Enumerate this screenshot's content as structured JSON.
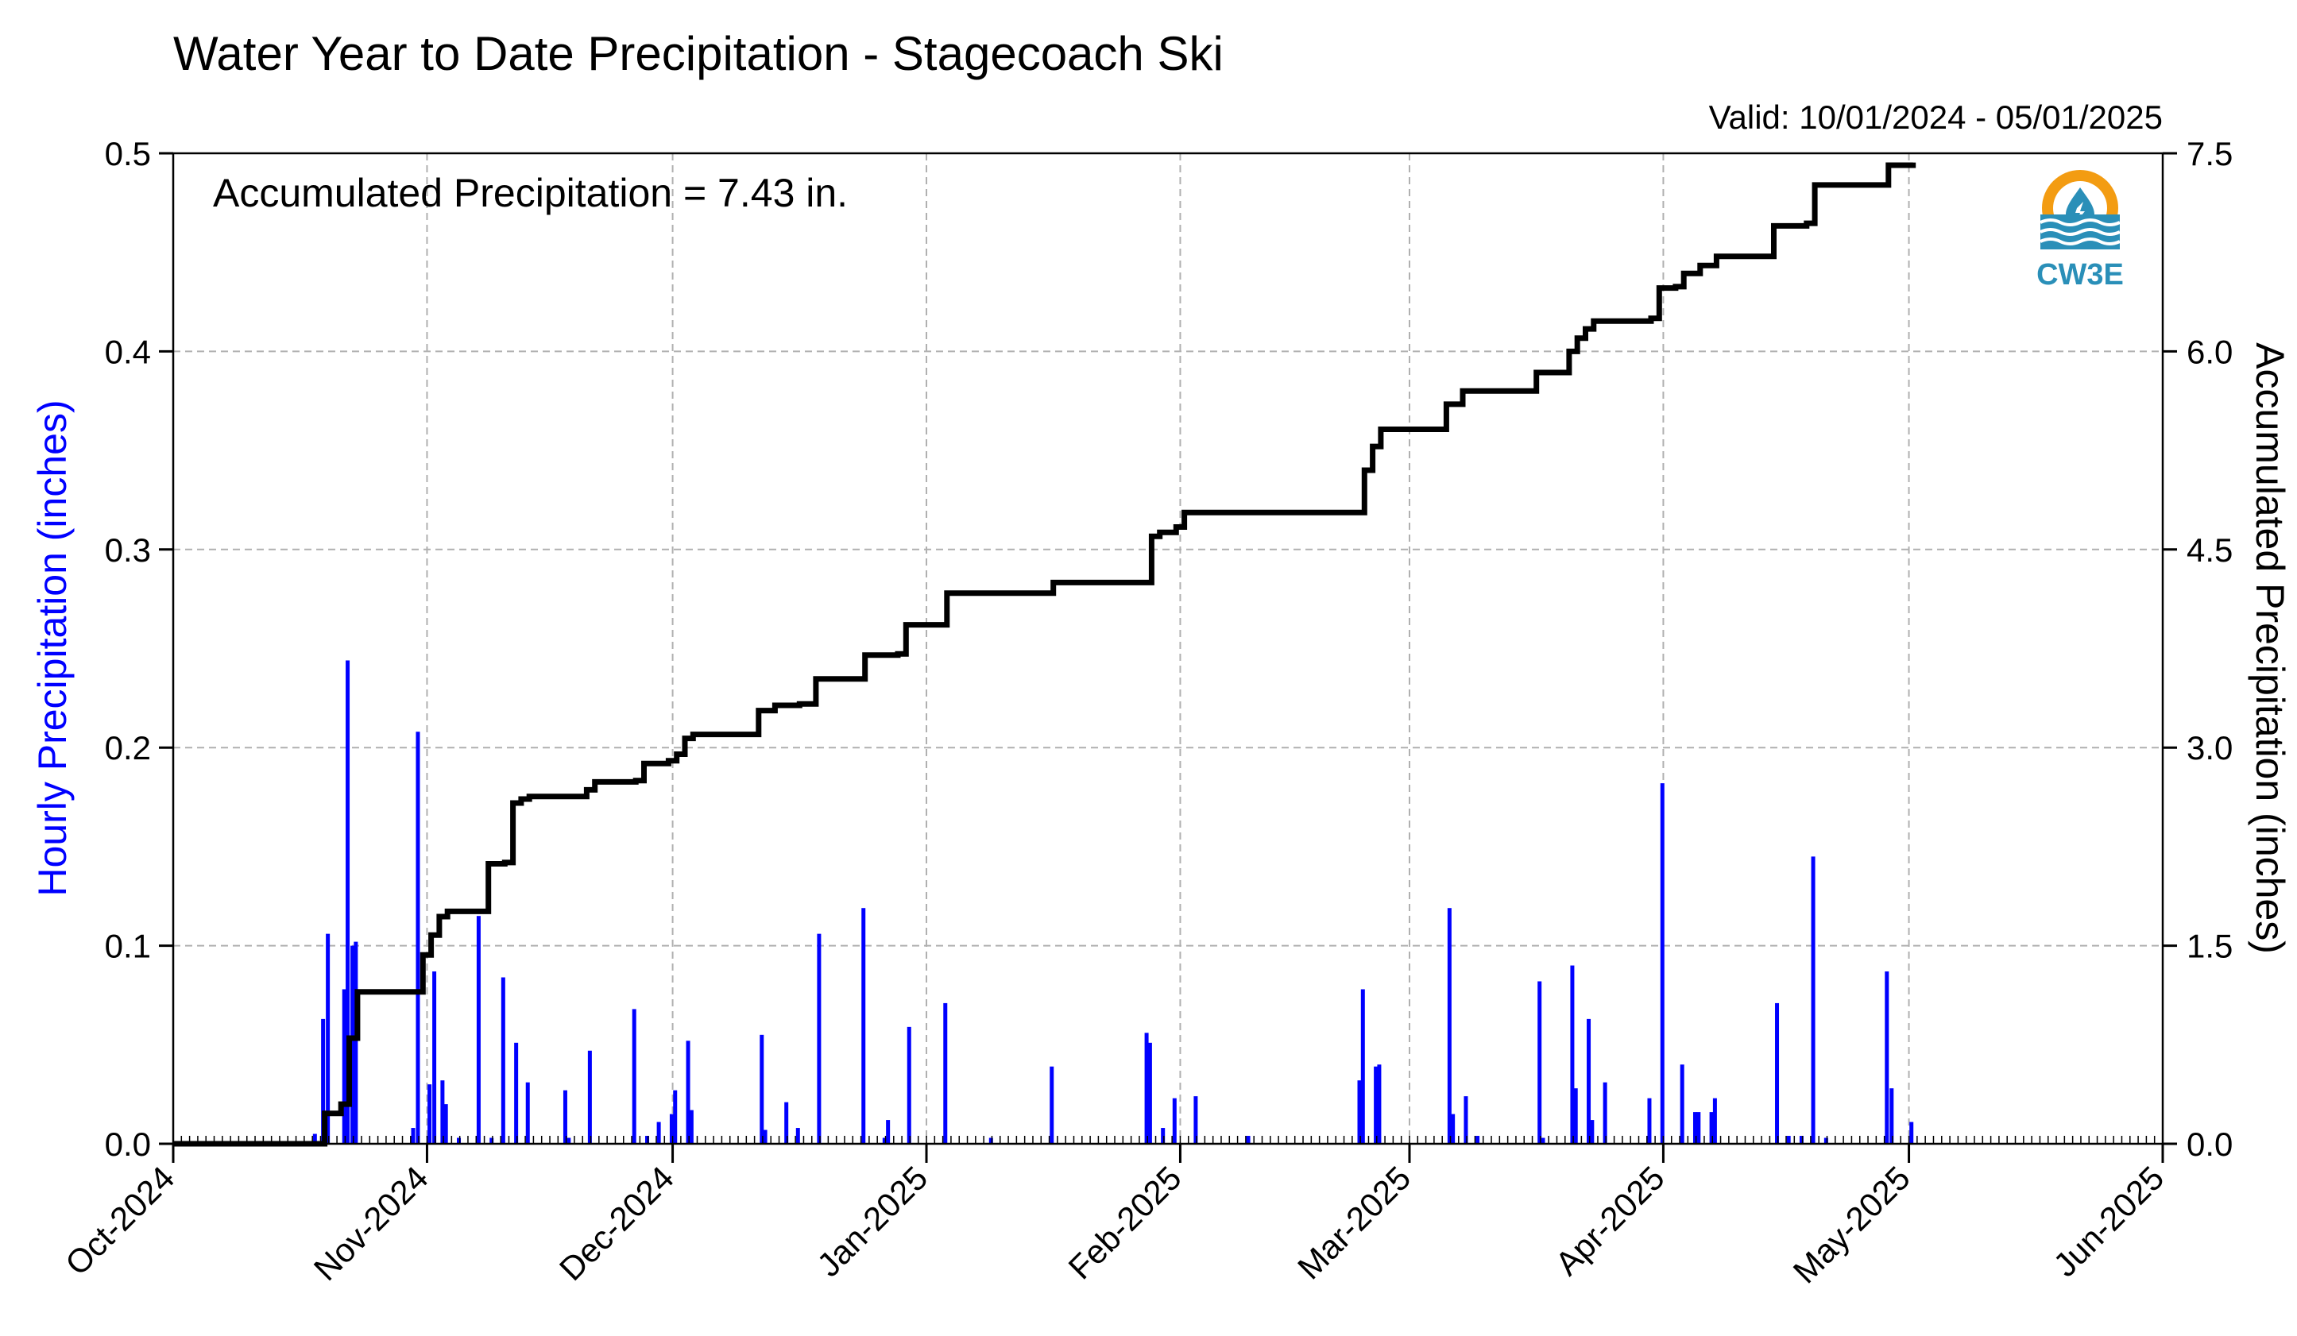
{
  "chart_data": {
    "type": "bar",
    "title": "Water Year to Date Precipitation - Stagecoach Ski",
    "valid_text": "Valid: 10/01/2024 - 05/01/2025",
    "annotation": "Accumulated Precipitation = 7.43 in.",
    "ylabel_left": "Hourly Precipitation (inches)",
    "ylabel_right": "Accumulated Precipitation (inches)",
    "xlim": [
      "2024-10-01",
      "2025-06-01"
    ],
    "ylim_left": [
      0,
      0.5
    ],
    "ylim_right": [
      0,
      7.5
    ],
    "x_ticks": [
      {
        "date": "2024-10-01",
        "label": "Oct-2024"
      },
      {
        "date": "2024-11-01",
        "label": "Nov-2024"
      },
      {
        "date": "2024-12-01",
        "label": "Dec-2024"
      },
      {
        "date": "2025-01-01",
        "label": "Jan-2025"
      },
      {
        "date": "2025-02-01",
        "label": "Feb-2025"
      },
      {
        "date": "2025-03-01",
        "label": "Mar-2025"
      },
      {
        "date": "2025-04-01",
        "label": "Apr-2025"
      },
      {
        "date": "2025-05-01",
        "label": "May-2025"
      },
      {
        "date": "2025-06-01",
        "label": "Jun-2025"
      }
    ],
    "y_ticks_left": [
      {
        "value": 0.0,
        "label": "0.0"
      },
      {
        "value": 0.1,
        "label": "0.1"
      },
      {
        "value": 0.2,
        "label": "0.2"
      },
      {
        "value": 0.3,
        "label": "0.3"
      },
      {
        "value": 0.4,
        "label": "0.4"
      },
      {
        "value": 0.5,
        "label": "0.5"
      }
    ],
    "y_ticks_right": [
      {
        "value": 0.0,
        "label": "0.0"
      },
      {
        "value": 1.5,
        "label": "1.5"
      },
      {
        "value": 3.0,
        "label": "3.0"
      },
      {
        "value": 4.5,
        "label": "4.5"
      },
      {
        "value": 6.0,
        "label": "6.0"
      },
      {
        "value": 7.5,
        "label": "7.5"
      }
    ],
    "grid": true,
    "series": [
      {
        "name": "Hourly Precipitation",
        "type": "bar",
        "color": "#0000ff",
        "points": [
          {
            "x": "2024-10-18",
            "y": 0.005
          },
          {
            "x": "2024-10-19",
            "y": 0.106
          },
          {
            "x": "2024-10-19",
            "y": 0.063
          },
          {
            "x": "2024-10-21",
            "y": 0.078
          },
          {
            "x": "2024-10-22",
            "y": 0.244
          },
          {
            "x": "2024-10-22",
            "y": 0.1
          },
          {
            "x": "2024-10-23",
            "y": 0.102
          },
          {
            "x": "2024-10-30",
            "y": 0.208
          },
          {
            "x": "2024-10-30",
            "y": 0.008
          },
          {
            "x": "2024-11-01",
            "y": 0.087
          },
          {
            "x": "2024-11-01",
            "y": 0.03
          },
          {
            "x": "2024-11-02",
            "y": 0.032
          },
          {
            "x": "2024-11-03",
            "y": 0.02
          },
          {
            "x": "2024-11-04",
            "y": 0.003
          },
          {
            "x": "2024-11-07",
            "y": 0.115
          },
          {
            "x": "2024-11-08",
            "y": 0.003
          },
          {
            "x": "2024-11-10",
            "y": 0.084
          },
          {
            "x": "2024-11-11",
            "y": 0.051
          },
          {
            "x": "2024-11-13",
            "y": 0.031
          },
          {
            "x": "2024-11-17",
            "y": 0.027
          },
          {
            "x": "2024-11-18",
            "y": 0.003
          },
          {
            "x": "2024-11-20",
            "y": 0.047
          },
          {
            "x": "2024-11-26",
            "y": 0.068
          },
          {
            "x": "2024-11-27",
            "y": 0.004
          },
          {
            "x": "2024-11-29",
            "y": 0.011
          },
          {
            "x": "2024-11-30",
            "y": 0.015
          },
          {
            "x": "2024-12-01",
            "y": 0.027
          },
          {
            "x": "2024-12-02",
            "y": 0.052
          },
          {
            "x": "2024-12-03",
            "y": 0.017
          },
          {
            "x": "2024-12-11",
            "y": 0.055
          },
          {
            "x": "2024-12-12",
            "y": 0.007
          },
          {
            "x": "2024-12-14",
            "y": 0.021
          },
          {
            "x": "2024-12-16",
            "y": 0.008
          },
          {
            "x": "2024-12-18",
            "y": 0.106
          },
          {
            "x": "2024-12-24",
            "y": 0.119
          },
          {
            "x": "2024-12-26",
            "y": 0.003
          },
          {
            "x": "2024-12-27",
            "y": 0.012
          },
          {
            "x": "2024-12-29",
            "y": 0.059
          },
          {
            "x": "2025-01-03",
            "y": 0.071
          },
          {
            "x": "2025-01-08",
            "y": 0.003
          },
          {
            "x": "2025-01-16",
            "y": 0.039
          },
          {
            "x": "2025-01-27",
            "y": 0.056
          },
          {
            "x": "2025-01-28",
            "y": 0.051
          },
          {
            "x": "2025-01-29",
            "y": 0.008
          },
          {
            "x": "2025-01-31",
            "y": 0.023
          },
          {
            "x": "2025-02-02",
            "y": 0.024
          },
          {
            "x": "2025-02-09",
            "y": 0.004
          },
          {
            "x": "2025-02-22",
            "y": 0.032
          },
          {
            "x": "2025-02-23",
            "y": 0.078
          },
          {
            "x": "2025-02-24",
            "y": 0.039
          },
          {
            "x": "2025-02-25",
            "y": 0.04
          },
          {
            "x": "2025-03-05",
            "y": 0.119
          },
          {
            "x": "2025-03-06",
            "y": 0.015
          },
          {
            "x": "2025-03-07",
            "y": 0.024
          },
          {
            "x": "2025-03-09",
            "y": 0.004
          },
          {
            "x": "2025-03-16",
            "y": 0.082
          },
          {
            "x": "2025-03-17",
            "y": 0.003
          },
          {
            "x": "2025-03-20",
            "y": 0.09
          },
          {
            "x": "2025-03-21",
            "y": 0.028
          },
          {
            "x": "2025-03-22",
            "y": 0.063
          },
          {
            "x": "2025-03-23",
            "y": 0.012
          },
          {
            "x": "2025-03-24",
            "y": 0.031
          },
          {
            "x": "2025-03-30",
            "y": 0.023
          },
          {
            "x": "2025-03-31",
            "y": 0.182
          },
          {
            "x": "2025-04-03",
            "y": 0.04
          },
          {
            "x": "2025-04-04",
            "y": 0.016
          },
          {
            "x": "2025-04-05",
            "y": 0.016
          },
          {
            "x": "2025-04-06",
            "y": 0.016
          },
          {
            "x": "2025-04-07",
            "y": 0.023
          },
          {
            "x": "2025-04-14",
            "y": 0.071
          },
          {
            "x": "2025-04-16",
            "y": 0.004
          },
          {
            "x": "2025-04-17",
            "y": 0.004
          },
          {
            "x": "2025-04-19",
            "y": 0.145
          },
          {
            "x": "2025-04-20",
            "y": 0.003
          },
          {
            "x": "2025-04-28",
            "y": 0.087
          },
          {
            "x": "2025-04-28",
            "y": 0.028
          },
          {
            "x": "2025-05-01",
            "y": 0.011
          }
        ]
      },
      {
        "name": "Accumulated Precipitation",
        "type": "line",
        "color": "#000000",
        "points": [
          {
            "x": "2024-10-01",
            "y": 0.0
          },
          {
            "x": "2024-10-18",
            "y": 0.0
          },
          {
            "x": "2024-10-19",
            "y": 0.23
          },
          {
            "x": "2024-10-21",
            "y": 0.3
          },
          {
            "x": "2024-10-22",
            "y": 0.8
          },
          {
            "x": "2024-10-23",
            "y": 1.15
          },
          {
            "x": "2024-10-30",
            "y": 1.15
          },
          {
            "x": "2024-10-31",
            "y": 1.43
          },
          {
            "x": "2024-11-01",
            "y": 1.58
          },
          {
            "x": "2024-11-02",
            "y": 1.72
          },
          {
            "x": "2024-11-03",
            "y": 1.76
          },
          {
            "x": "2024-11-07",
            "y": 1.76
          },
          {
            "x": "2024-11-08",
            "y": 2.12
          },
          {
            "x": "2024-11-10",
            "y": 2.13
          },
          {
            "x": "2024-11-11",
            "y": 2.58
          },
          {
            "x": "2024-11-12",
            "y": 2.61
          },
          {
            "x": "2024-11-13",
            "y": 2.63
          },
          {
            "x": "2024-11-20",
            "y": 2.68
          },
          {
            "x": "2024-11-21",
            "y": 2.74
          },
          {
            "x": "2024-11-26",
            "y": 2.75
          },
          {
            "x": "2024-11-27",
            "y": 2.88
          },
          {
            "x": "2024-11-30",
            "y": 2.9
          },
          {
            "x": "2024-12-01",
            "y": 2.95
          },
          {
            "x": "2024-12-02",
            "y": 3.07
          },
          {
            "x": "2024-12-03",
            "y": 3.1
          },
          {
            "x": "2024-12-10",
            "y": 3.1
          },
          {
            "x": "2024-12-11",
            "y": 3.28
          },
          {
            "x": "2024-12-13",
            "y": 3.32
          },
          {
            "x": "2024-12-16",
            "y": 3.33
          },
          {
            "x": "2024-12-17",
            "y": 3.33
          },
          {
            "x": "2024-12-18",
            "y": 3.52
          },
          {
            "x": "2024-12-23",
            "y": 3.52
          },
          {
            "x": "2024-12-24",
            "y": 3.7
          },
          {
            "x": "2024-12-28",
            "y": 3.71
          },
          {
            "x": "2024-12-29",
            "y": 3.93
          },
          {
            "x": "2025-01-02",
            "y": 3.93
          },
          {
            "x": "2025-01-03",
            "y": 4.17
          },
          {
            "x": "2025-01-15",
            "y": 4.17
          },
          {
            "x": "2025-01-16",
            "y": 4.25
          },
          {
            "x": "2025-01-27",
            "y": 4.25
          },
          {
            "x": "2025-01-28",
            "y": 4.6
          },
          {
            "x": "2025-01-29",
            "y": 4.63
          },
          {
            "x": "2025-01-31",
            "y": 4.67
          },
          {
            "x": "2025-02-01",
            "y": 4.78
          },
          {
            "x": "2025-02-22",
            "y": 4.78
          },
          {
            "x": "2025-02-23",
            "y": 5.1
          },
          {
            "x": "2025-02-24",
            "y": 5.28
          },
          {
            "x": "2025-02-25",
            "y": 5.41
          },
          {
            "x": "2025-03-04",
            "y": 5.41
          },
          {
            "x": "2025-03-05",
            "y": 5.6
          },
          {
            "x": "2025-03-07",
            "y": 5.7
          },
          {
            "x": "2025-03-15",
            "y": 5.7
          },
          {
            "x": "2025-03-16",
            "y": 5.84
          },
          {
            "x": "2025-03-19",
            "y": 5.84
          },
          {
            "x": "2025-03-20",
            "y": 6.0
          },
          {
            "x": "2025-03-21",
            "y": 6.1
          },
          {
            "x": "2025-03-22",
            "y": 6.17
          },
          {
            "x": "2025-03-23",
            "y": 6.23
          },
          {
            "x": "2025-03-30",
            "y": 6.25
          },
          {
            "x": "2025-03-31",
            "y": 6.48
          },
          {
            "x": "2025-04-02",
            "y": 6.49
          },
          {
            "x": "2025-04-03",
            "y": 6.59
          },
          {
            "x": "2025-04-05",
            "y": 6.65
          },
          {
            "x": "2025-04-07",
            "y": 6.72
          },
          {
            "x": "2025-04-13",
            "y": 6.72
          },
          {
            "x": "2025-04-14",
            "y": 6.95
          },
          {
            "x": "2025-04-18",
            "y": 6.97
          },
          {
            "x": "2025-04-19",
            "y": 7.26
          },
          {
            "x": "2025-04-27",
            "y": 7.26
          },
          {
            "x": "2025-04-28",
            "y": 7.41
          },
          {
            "x": "2025-05-01",
            "y": 7.43
          }
        ]
      }
    ]
  },
  "logo": {
    "text": "CW3E",
    "colors": {
      "sun": "#f39c12",
      "water": "#2a8fb8",
      "text": "#2a8fb8"
    }
  }
}
